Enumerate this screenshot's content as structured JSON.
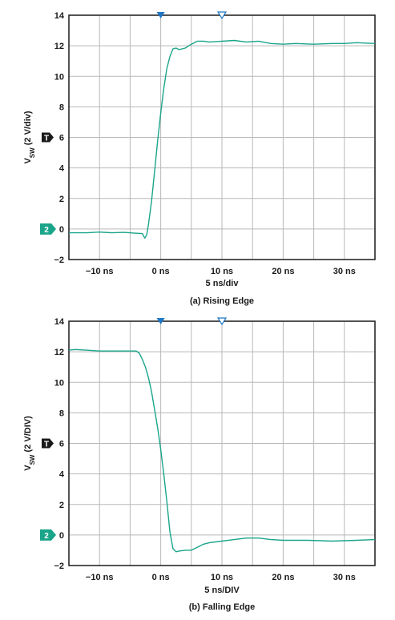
{
  "colors": {
    "trace": "#1aa58a",
    "grid": "#b8b8b8",
    "frame": "#1a1a1a",
    "trigger_marker": "#1f77c4",
    "channel_marker": "#1aa58a",
    "t_marker": "#1a1a1a"
  },
  "chart_data": [
    {
      "type": "line",
      "caption": "(a) Rising Edge",
      "xlabel": "5 ns/div",
      "ylabel_main": "V",
      "ylabel_sub": "SW",
      "ylabel_rest": " (2 V/div)",
      "xlim": [
        -15,
        35
      ],
      "ylim": [
        -2,
        14
      ],
      "x_ticks": [
        -10,
        0,
        10,
        20,
        30
      ],
      "x_tick_labels": [
        "−10 ns",
        "0 ns",
        "10 ns",
        "20 ns",
        "30 ns"
      ],
      "y_ticks": [
        -2,
        0,
        2,
        4,
        6,
        8,
        10,
        12,
        14
      ],
      "y_tick_labels": [
        "−2",
        "0",
        "2",
        "4",
        "6",
        "8",
        "10",
        "12",
        "14"
      ],
      "grid": true,
      "markers": {
        "trigger_x": 0,
        "cursor_x": 10,
        "t_label": "T",
        "t_y": 6,
        "channel_label": "2",
        "channel_y": 0
      },
      "series": [
        {
          "x": [
            -15,
            -12,
            -10,
            -8,
            -6,
            -4,
            -3,
            -2.6,
            -2.3,
            -2.0,
            -1.5,
            -1.0,
            -0.5,
            0,
            0.5,
            1,
            1.5,
            2,
            2.5,
            3,
            4,
            5,
            6,
            7,
            8,
            10,
            12,
            14,
            16,
            18,
            20,
            22,
            25,
            28,
            30,
            32,
            35
          ],
          "y": [
            -0.25,
            -0.25,
            -0.2,
            -0.25,
            -0.22,
            -0.28,
            -0.3,
            -0.6,
            -0.4,
            0.3,
            1.8,
            3.8,
            5.8,
            7.6,
            9.2,
            10.5,
            11.3,
            11.8,
            11.85,
            11.75,
            11.85,
            12.1,
            12.3,
            12.3,
            12.25,
            12.3,
            12.35,
            12.25,
            12.3,
            12.15,
            12.1,
            12.15,
            12.1,
            12.15,
            12.15,
            12.2,
            12.15
          ]
        }
      ]
    },
    {
      "type": "line",
      "caption": "(b) Falling Edge",
      "xlabel": "5 ns/DIV",
      "ylabel_main": "V",
      "ylabel_sub": "SW",
      "ylabel_rest": " (2 V/DIV)",
      "xlim": [
        -15,
        35
      ],
      "ylim": [
        -2,
        14
      ],
      "x_ticks": [
        -10,
        0,
        10,
        20,
        30
      ],
      "x_tick_labels": [
        "−10 ns",
        "0 ns",
        "10 ns",
        "20 ns",
        "30 ns"
      ],
      "y_ticks": [
        -2,
        0,
        2,
        4,
        6,
        8,
        10,
        12,
        14
      ],
      "y_tick_labels": [
        "−2",
        "0",
        "2",
        "4",
        "6",
        "8",
        "10",
        "12",
        "14"
      ],
      "grid": true,
      "markers": {
        "trigger_x": 0,
        "cursor_x": 10,
        "t_label": "T",
        "t_y": 6,
        "channel_label": "2",
        "channel_y": 0
      },
      "series": [
        {
          "x": [
            -15,
            -14,
            -12,
            -10,
            -8,
            -6,
            -4,
            -3.5,
            -3,
            -2.5,
            -2,
            -1.5,
            -1,
            -0.5,
            0,
            0.5,
            1,
            1.5,
            2,
            2.5,
            3,
            4,
            5,
            6,
            7,
            8,
            10,
            12,
            14,
            16,
            18,
            20,
            24,
            28,
            32,
            35
          ],
          "y": [
            12.1,
            12.15,
            12.1,
            12.05,
            12.05,
            12.05,
            12.05,
            11.9,
            11.5,
            11.0,
            10.3,
            9.4,
            8.2,
            7.0,
            5.6,
            4.0,
            2.2,
            0.2,
            -0.9,
            -1.1,
            -1.05,
            -1.0,
            -1.0,
            -0.8,
            -0.6,
            -0.5,
            -0.4,
            -0.3,
            -0.2,
            -0.2,
            -0.3,
            -0.35,
            -0.35,
            -0.4,
            -0.35,
            -0.3
          ]
        }
      ]
    }
  ]
}
